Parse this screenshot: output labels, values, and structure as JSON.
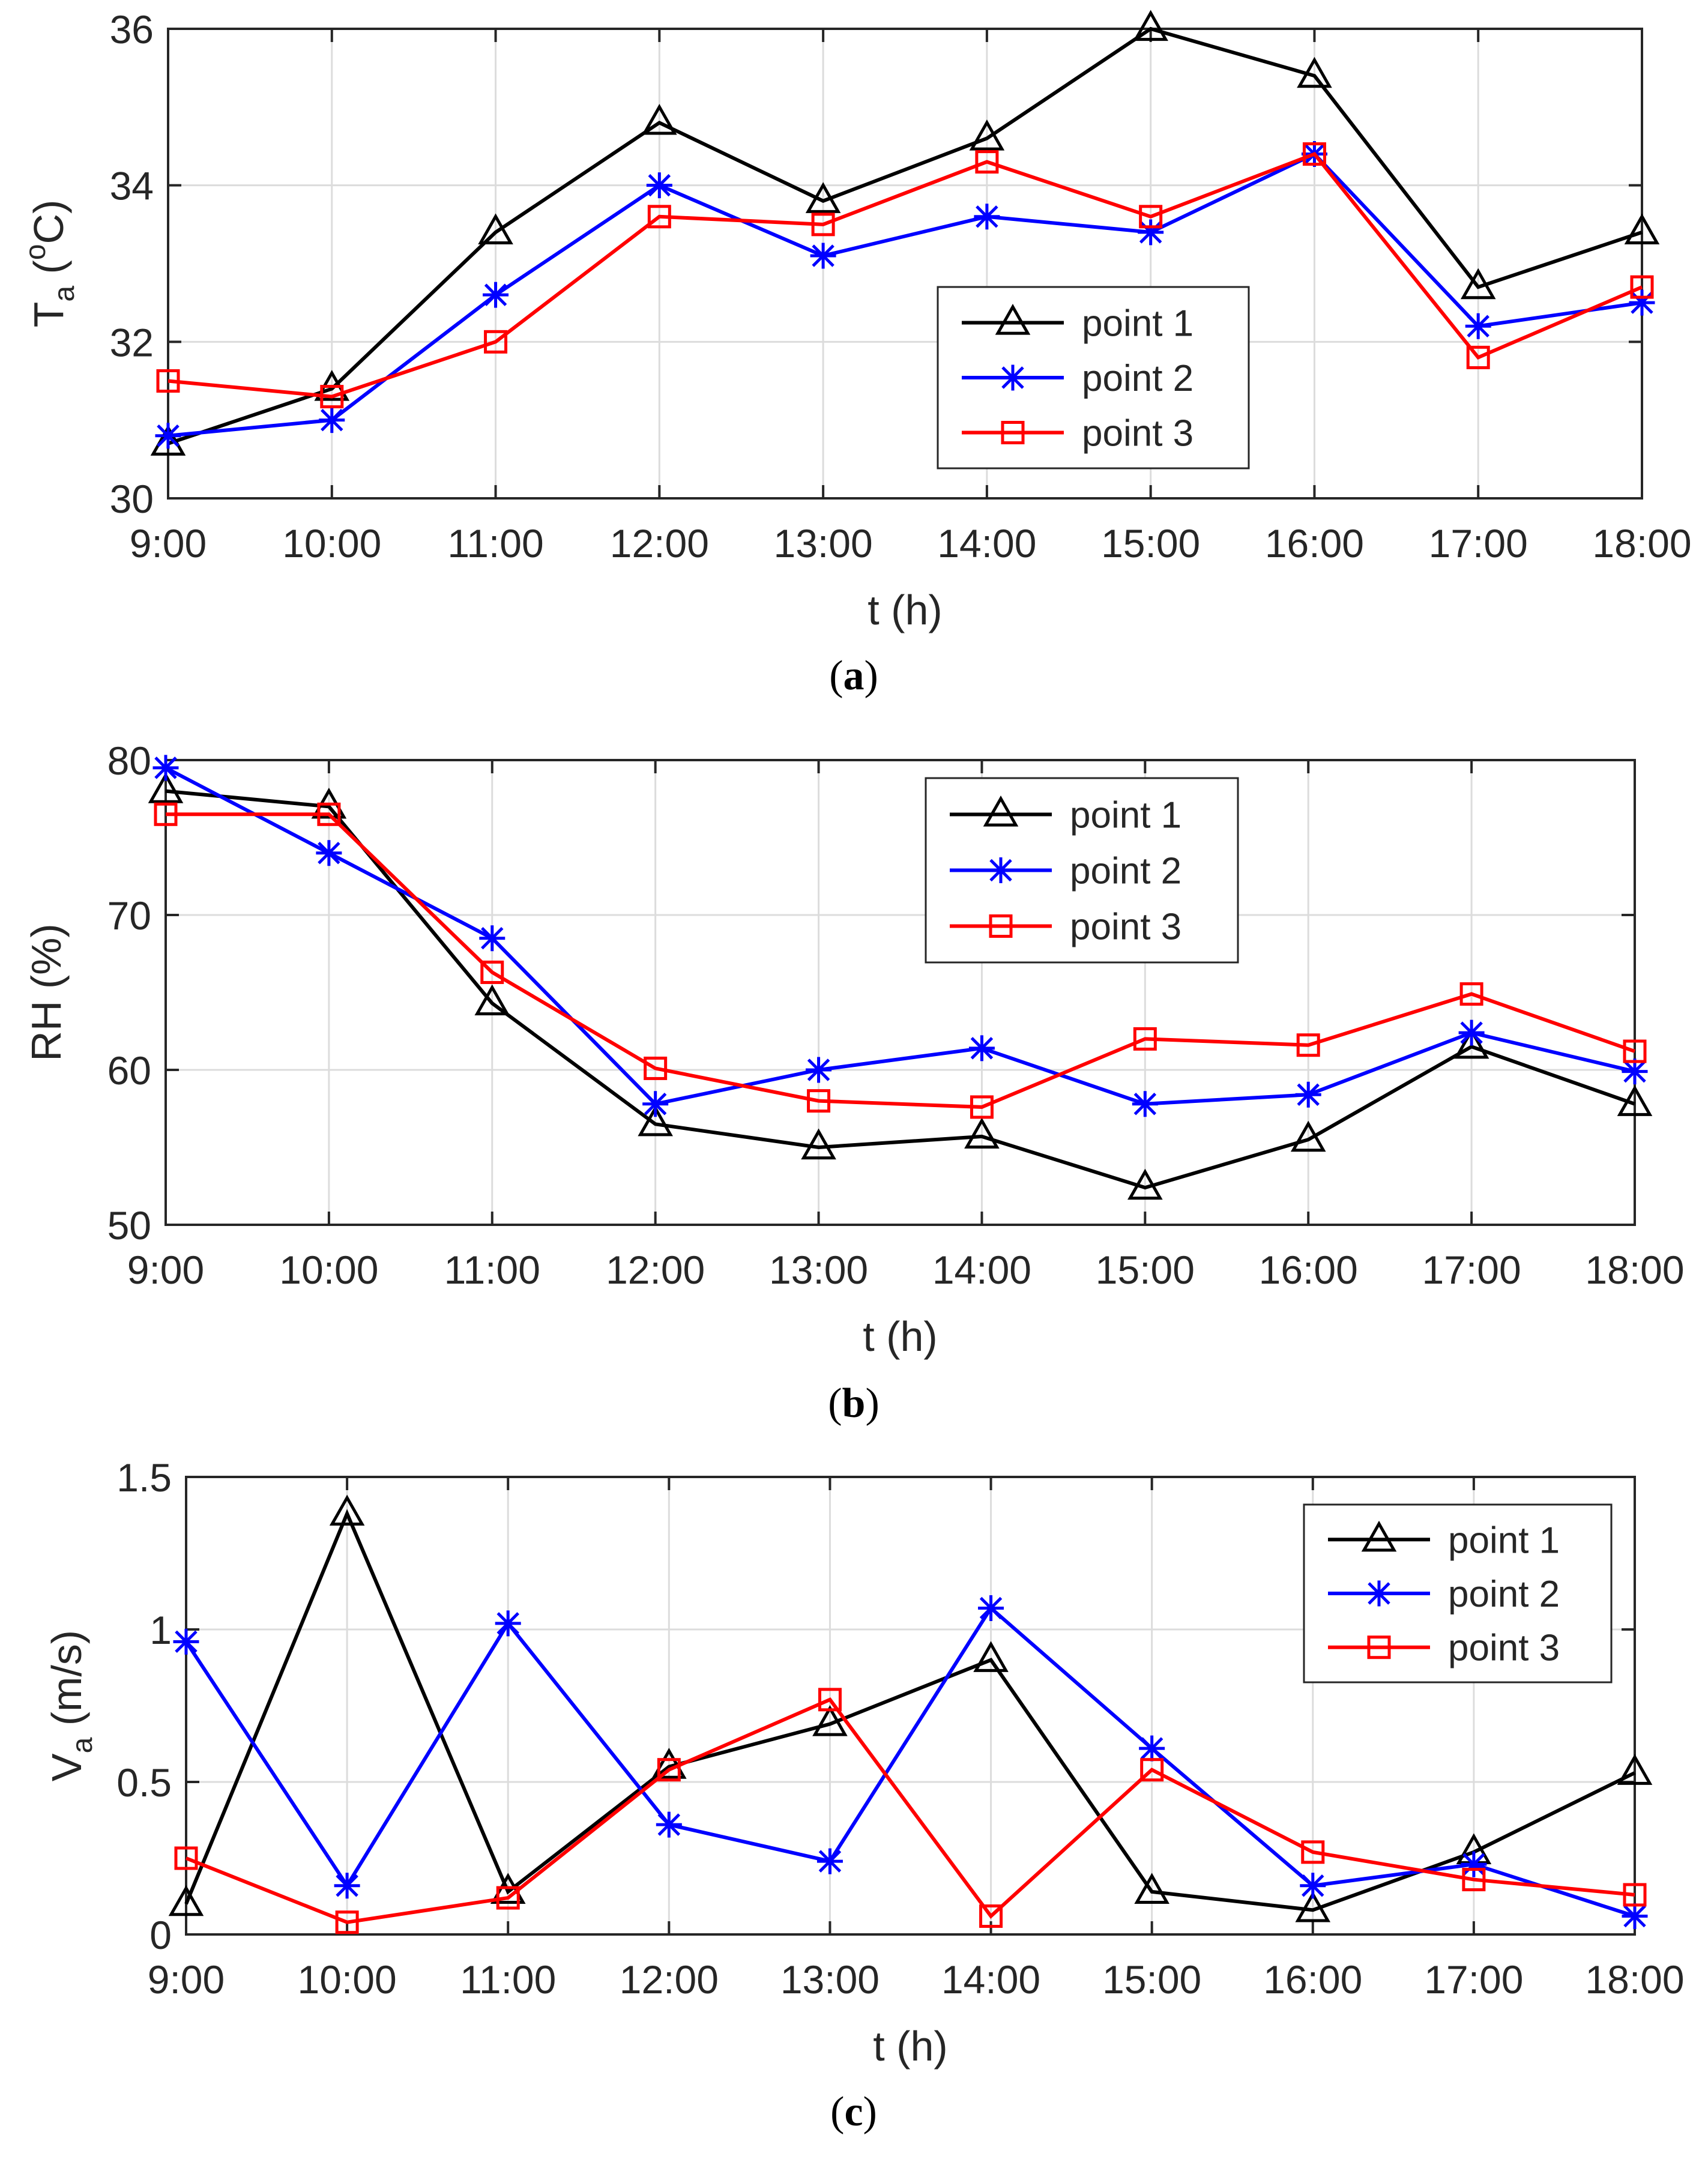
{
  "colors": {
    "point_1": "#000000",
    "point_2": "#0000ff",
    "point_3": "#ff0000",
    "grid": "#dcdcdc",
    "axis": "#262626"
  },
  "chart_data": [
    {
      "type": "line",
      "panel": "(a)",
      "caption_letter": "a",
      "ylabel_main": "T",
      "ylabel_sub": "a",
      "ylabel_unit_open": " (",
      "ylabel_unit_sup": "o",
      "ylabel_unit_rest": "C)",
      "xlabel": "t (h)",
      "categories": [
        "9:00",
        "10:00",
        "11:00",
        "12:00",
        "13:00",
        "14:00",
        "15:00",
        "16:00",
        "17:00",
        "18:00"
      ],
      "ylim": [
        30,
        36
      ],
      "yticks": [
        30,
        32,
        34,
        36
      ],
      "ytick_labels": [
        "30",
        "32",
        "34",
        "36"
      ],
      "legend_position": "center-right",
      "grid": true,
      "series": [
        {
          "name": "point 1",
          "marker": "triangle",
          "values": [
            30.7,
            31.4,
            33.4,
            34.8,
            33.8,
            34.6,
            36.0,
            35.4,
            32.7,
            33.4
          ]
        },
        {
          "name": "point 2",
          "marker": "asterisk",
          "values": [
            30.8,
            31.0,
            32.6,
            34.0,
            33.1,
            33.6,
            33.4,
            34.4,
            32.2,
            32.5
          ]
        },
        {
          "name": "point 3",
          "marker": "square",
          "values": [
            31.5,
            31.3,
            32.0,
            33.6,
            33.5,
            34.3,
            33.6,
            34.4,
            31.8,
            32.7
          ]
        }
      ]
    },
    {
      "type": "line",
      "panel": "(b)",
      "caption_letter": "b",
      "ylabel_main": "RH (%)",
      "ylabel_sub": "",
      "ylabel_unit_open": "",
      "ylabel_unit_sup": "",
      "ylabel_unit_rest": "",
      "xlabel": "t (h)",
      "categories": [
        "9:00",
        "10:00",
        "11:00",
        "12:00",
        "13:00",
        "14:00",
        "15:00",
        "16:00",
        "17:00",
        "18:00"
      ],
      "ylim": [
        50,
        80
      ],
      "yticks": [
        50,
        60,
        70,
        80
      ],
      "ytick_labels": [
        "50",
        "60",
        "70",
        "80"
      ],
      "legend_position": "top-center-right",
      "grid": true,
      "series": [
        {
          "name": "point 1",
          "marker": "triangle",
          "values": [
            78.0,
            77.0,
            64.3,
            56.5,
            55.0,
            55.7,
            52.4,
            55.5,
            61.5,
            57.8
          ]
        },
        {
          "name": "point 2",
          "marker": "asterisk",
          "values": [
            79.5,
            74.0,
            68.5,
            57.8,
            60.0,
            61.4,
            57.8,
            58.4,
            62.4,
            59.9
          ]
        },
        {
          "name": "point 3",
          "marker": "square",
          "values": [
            76.5,
            76.5,
            66.3,
            60.1,
            58.0,
            57.6,
            62.0,
            61.6,
            64.9,
            61.2
          ]
        }
      ]
    },
    {
      "type": "line",
      "panel": "(c)",
      "caption_letter": "c",
      "ylabel_main": "V",
      "ylabel_sub": "a",
      "ylabel_unit_open": " (m/s)",
      "ylabel_unit_sup": "",
      "ylabel_unit_rest": "",
      "xlabel": "t (h)",
      "categories": [
        "9:00",
        "10:00",
        "11:00",
        "12:00",
        "13:00",
        "14:00",
        "15:00",
        "16:00",
        "17:00",
        "18:00"
      ],
      "ylim": [
        0,
        1.5
      ],
      "yticks": [
        0,
        0.5,
        1,
        1.5
      ],
      "ytick_labels": [
        "0",
        "0.5",
        "1",
        "1.5"
      ],
      "legend_position": "top-right",
      "grid": true,
      "series": [
        {
          "name": "point 1",
          "marker": "triangle",
          "values": [
            0.1,
            1.38,
            0.14,
            0.55,
            0.69,
            0.9,
            0.14,
            0.08,
            0.27,
            0.53
          ]
        },
        {
          "name": "point 2",
          "marker": "asterisk",
          "values": [
            0.96,
            0.16,
            1.02,
            0.36,
            0.24,
            1.07,
            0.61,
            0.16,
            0.23,
            0.06
          ]
        },
        {
          "name": "point 3",
          "marker": "square",
          "values": [
            0.25,
            0.04,
            0.12,
            0.54,
            0.77,
            0.06,
            0.54,
            0.27,
            0.18,
            0.13
          ]
        }
      ]
    }
  ]
}
